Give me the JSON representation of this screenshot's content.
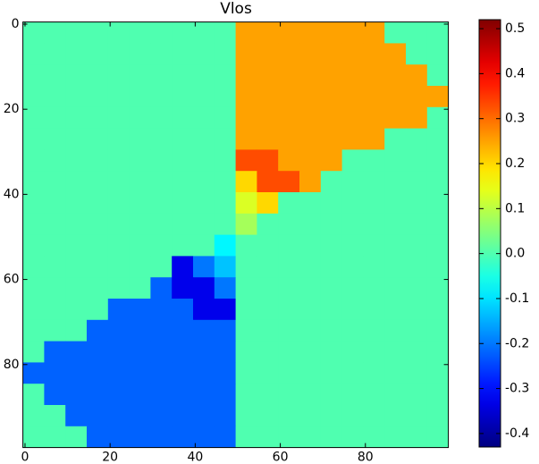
{
  "chart_data": {
    "type": "heatmap",
    "title": "Vlos",
    "xlim": [
      -0.5,
      99.5
    ],
    "ylim": [
      99.5,
      -0.5
    ],
    "xticks": [
      0,
      20,
      40,
      60,
      80
    ],
    "yticks": [
      0,
      20,
      40,
      60,
      80
    ],
    "colormap": "jet",
    "clim": [
      -0.43,
      0.52
    ],
    "cticks": [
      -0.4,
      -0.3,
      -0.2,
      -0.1,
      {
        "value": 0,
        "label": "0.0"
      },
      0.1,
      0.2,
      0.3,
      0.4,
      0.5
    ],
    "z": [
      [
        0,
        0,
        0,
        0,
        0,
        0,
        0,
        0,
        0,
        0,
        0.25,
        0.25,
        0.25,
        0.25,
        0.25,
        0.25,
        0.25,
        0,
        0,
        0
      ],
      [
        0,
        0,
        0,
        0,
        0,
        0,
        0,
        0,
        0,
        0,
        0.25,
        0.25,
        0.25,
        0.25,
        0.25,
        0.25,
        0.25,
        0.25,
        0,
        0
      ],
      [
        0,
        0,
        0,
        0,
        0,
        0,
        0,
        0,
        0,
        0,
        0.25,
        0.25,
        0.25,
        0.25,
        0.25,
        0.25,
        0.25,
        0.25,
        0.25,
        0
      ],
      [
        0,
        0,
        0,
        0,
        0,
        0,
        0,
        0,
        0,
        0,
        0.25,
        0.25,
        0.25,
        0.25,
        0.25,
        0.25,
        0.25,
        0.25,
        0.25,
        0.25
      ],
      [
        0,
        0,
        0,
        0,
        0,
        0,
        0,
        0,
        0,
        0,
        0.25,
        0.25,
        0.25,
        0.25,
        0.25,
        0.25,
        0.25,
        0.25,
        0.25,
        0
      ],
      [
        0,
        0,
        0,
        0,
        0,
        0,
        0,
        0,
        0,
        0,
        0.25,
        0.25,
        0.25,
        0.25,
        0.25,
        0.25,
        0.25,
        0,
        0,
        0
      ],
      [
        0,
        0,
        0,
        0,
        0,
        0,
        0,
        0,
        0,
        0,
        0.33,
        0.33,
        0.25,
        0.25,
        0.25,
        0,
        0,
        0,
        0,
        0
      ],
      [
        0,
        0,
        0,
        0,
        0,
        0,
        0,
        0,
        0,
        0,
        0.2,
        0.33,
        0.33,
        0.25,
        0,
        0,
        0,
        0,
        0,
        0
      ],
      [
        0,
        0,
        0,
        0,
        0,
        0,
        0,
        0,
        0,
        0,
        0.13,
        0.2,
        0,
        0,
        0,
        0,
        0,
        0,
        0,
        0
      ],
      [
        0,
        0,
        0,
        0,
        0,
        0,
        0,
        0,
        0,
        0,
        0.08,
        0,
        0,
        0,
        0,
        0,
        0,
        0,
        0,
        0
      ],
      [
        0,
        0,
        0,
        0,
        0,
        0,
        0,
        0,
        0,
        -0.08,
        0,
        0,
        0,
        0,
        0,
        0,
        0,
        0,
        0,
        0
      ],
      [
        0,
        0,
        0,
        0,
        0,
        0,
        0,
        -0.33,
        -0.2,
        -0.13,
        0,
        0,
        0,
        0,
        0,
        0,
        0,
        0,
        0,
        0
      ],
      [
        0,
        0,
        0,
        0,
        0,
        0,
        -0.22,
        -0.33,
        -0.33,
        -0.2,
        0,
        0,
        0,
        0,
        0,
        0,
        0,
        0,
        0,
        0
      ],
      [
        0,
        0,
        0,
        0,
        -0.22,
        -0.22,
        -0.22,
        -0.22,
        -0.33,
        -0.33,
        0,
        0,
        0,
        0,
        0,
        0,
        0,
        0,
        0,
        0
      ],
      [
        0,
        0,
        0,
        -0.22,
        -0.22,
        -0.22,
        -0.22,
        -0.22,
        -0.22,
        -0.22,
        0,
        0,
        0,
        0,
        0,
        0,
        0,
        0,
        0,
        0
      ],
      [
        0,
        -0.22,
        -0.22,
        -0.22,
        -0.22,
        -0.22,
        -0.22,
        -0.22,
        -0.22,
        -0.22,
        0,
        0,
        0,
        0,
        0,
        0,
        0,
        0,
        0,
        0
      ],
      [
        -0.22,
        -0.22,
        -0.22,
        -0.22,
        -0.22,
        -0.22,
        -0.22,
        -0.22,
        -0.22,
        -0.22,
        0,
        0,
        0,
        0,
        0,
        0,
        0,
        0,
        0,
        0
      ],
      [
        0,
        -0.22,
        -0.22,
        -0.22,
        -0.22,
        -0.22,
        -0.22,
        -0.22,
        -0.22,
        -0.22,
        0,
        0,
        0,
        0,
        0,
        0,
        0,
        0,
        0,
        0
      ],
      [
        0,
        0,
        -0.22,
        -0.22,
        -0.22,
        -0.22,
        -0.22,
        -0.22,
        -0.22,
        -0.22,
        0,
        0,
        0,
        0,
        0,
        0,
        0,
        0,
        0,
        0
      ],
      [
        0,
        0,
        0,
        -0.22,
        -0.22,
        -0.22,
        -0.22,
        -0.22,
        -0.22,
        -0.22,
        0,
        0,
        0,
        0,
        0,
        0,
        0,
        0,
        0,
        0
      ]
    ]
  }
}
